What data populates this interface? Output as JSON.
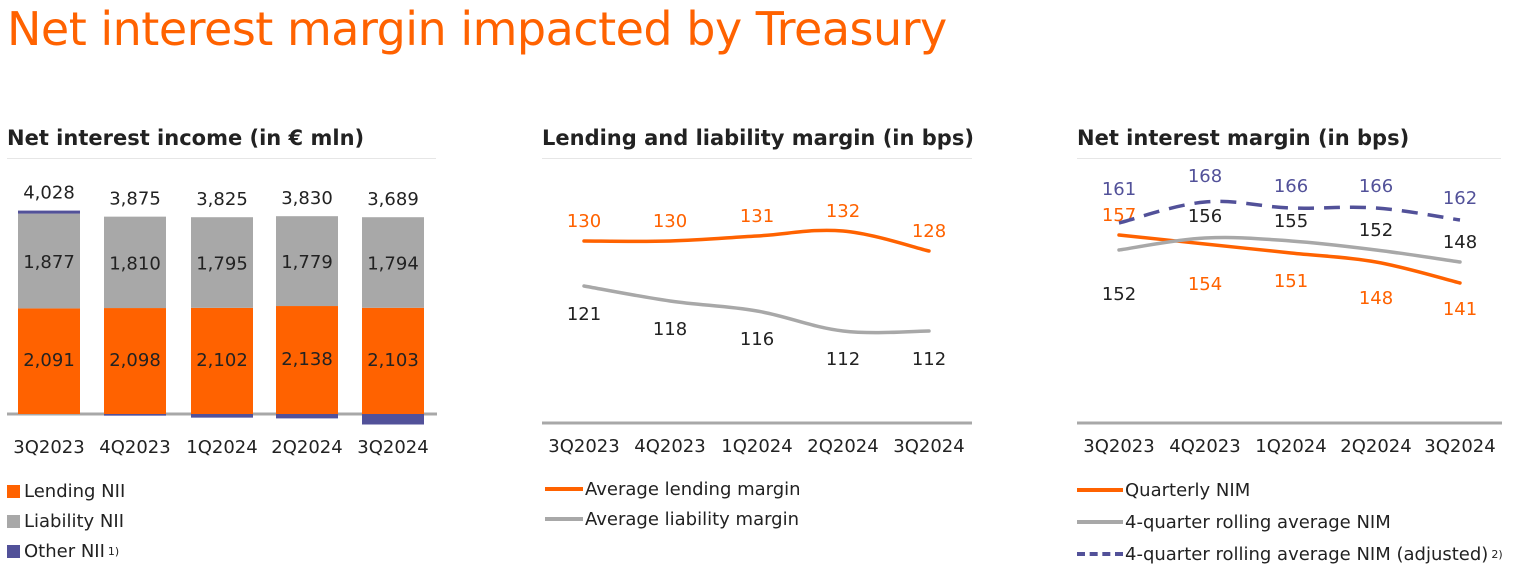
{
  "page_title": "Net interest margin impacted by Treasury",
  "colors": {
    "orange": "#FF6200",
    "grey": "#A8A8A8",
    "purple": "#525199",
    "text": "#222222"
  },
  "chart_data": [
    {
      "type": "bar",
      "title": "Net interest income (in € mln)",
      "categories": [
        "3Q2023",
        "4Q2023",
        "1Q2024",
        "2Q2024",
        "3Q2024"
      ],
      "totals": [
        "4,028",
        "3,875",
        "3,825",
        "3,830",
        "3,689"
      ],
      "series": [
        {
          "name": "Lending NII",
          "values": [
            2091,
            2098,
            2102,
            2138,
            2103
          ],
          "labels": [
            "2,091",
            "2,098",
            "2,102",
            "2,138",
            "2,103"
          ],
          "color": "#FF6200"
        },
        {
          "name": "Liability NII",
          "values": [
            1877,
            1810,
            1795,
            1779,
            1794
          ],
          "labels": [
            "1,877",
            "1,810",
            "1,795",
            "1,779",
            "1,794"
          ],
          "color": "#A8A8A8"
        },
        {
          "name": "Other NII",
          "values": [
            60,
            -33,
            -72,
            -87,
            -208
          ],
          "color": "#525199",
          "footnote": "1)"
        }
      ],
      "legend_position": "bottom"
    },
    {
      "type": "line",
      "title": "Lending and liability margin (in bps)",
      "categories": [
        "3Q2023",
        "4Q2023",
        "1Q2024",
        "2Q2024",
        "3Q2024"
      ],
      "series": [
        {
          "name": "Average lending margin",
          "values": [
            130,
            130,
            131,
            132,
            128
          ],
          "color": "#FF6200",
          "style": "solid"
        },
        {
          "name": "Average liability margin",
          "values": [
            121,
            118,
            116,
            112,
            112
          ],
          "color": "#A8A8A8",
          "style": "solid"
        }
      ],
      "legend_position": "bottom"
    },
    {
      "type": "line",
      "title": "Net interest margin (in bps)",
      "categories": [
        "3Q2023",
        "4Q2023",
        "1Q2024",
        "2Q2024",
        "3Q2024"
      ],
      "series": [
        {
          "name": "Quarterly NIM",
          "values": [
            157,
            154,
            151,
            148,
            141
          ],
          "color": "#FF6200",
          "style": "solid"
        },
        {
          "name": "4-quarter rolling average NIM",
          "values": [
            152,
            156,
            155,
            152,
            148
          ],
          "color": "#A8A8A8",
          "style": "solid"
        },
        {
          "name": "4-quarter rolling average NIM (adjusted)",
          "values": [
            161,
            168,
            166,
            166,
            162
          ],
          "color": "#525199",
          "style": "dashed",
          "footnote": "2)"
        }
      ],
      "legend_position": "bottom"
    }
  ]
}
